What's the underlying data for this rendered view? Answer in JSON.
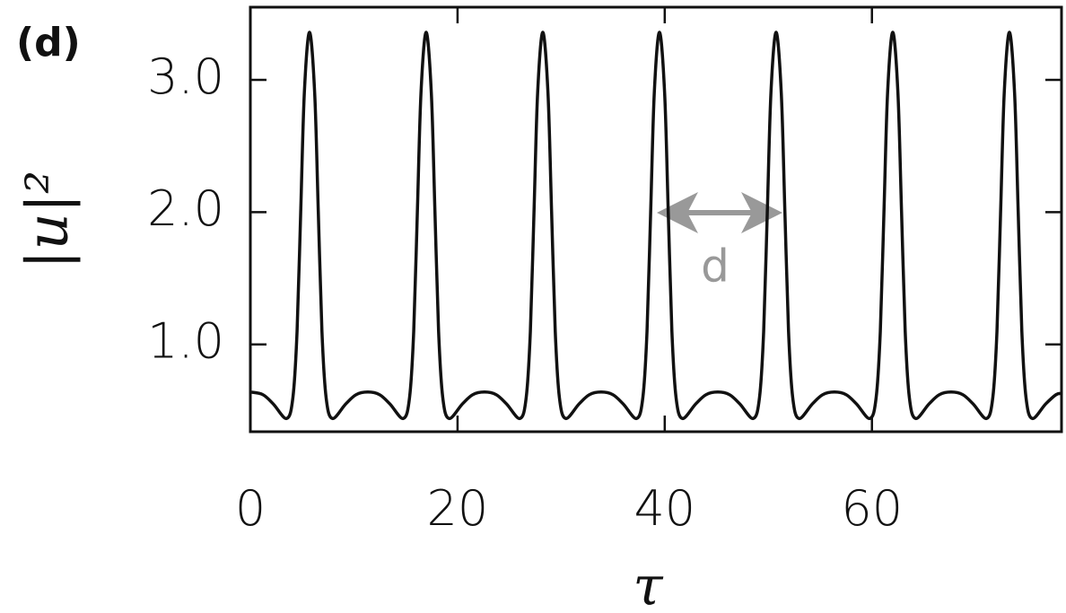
{
  "chart_data": {
    "type": "line",
    "panel_label": "(d)",
    "xlabel": "τ",
    "ylabel": "|u|²",
    "annotation": "d",
    "xlim": [
      0,
      78.3
    ],
    "ylim": [
      0.34,
      3.55
    ],
    "xticks": [
      0,
      20,
      40,
      60
    ],
    "yticks": [
      {
        "value": 1,
        "label": "1.0"
      },
      {
        "value": 2,
        "label": "2.0"
      },
      {
        "value": 3,
        "label": "3.0"
      }
    ],
    "series": [
      {
        "color": "#111111",
        "x": [
          0,
          1.21,
          2.21,
          3.51,
          4.11,
          4.51,
          4.86,
          5.21,
          5.71,
          6.21,
          6.56,
          6.91,
          7.31,
          7.91,
          9.21,
          10.21,
          11.34,
          12.47,
          13.47,
          14.77,
          15.37,
          15.77,
          16.12,
          16.47,
          16.97,
          17.47,
          17.82,
          18.17,
          18.57,
          19.17,
          20.47,
          21.47,
          22.6,
          23.73,
          24.73,
          26.03,
          26.63,
          27.03,
          27.38,
          27.73,
          28.23,
          28.73,
          29.08,
          29.43,
          29.83,
          30.43,
          31.73,
          32.73,
          33.86,
          34.99,
          35.99,
          37.29,
          37.89,
          38.29,
          38.64,
          38.99,
          39.49,
          39.99,
          40.34,
          40.69,
          41.09,
          41.69,
          42.99,
          43.99,
          45.12,
          46.25,
          47.25,
          48.55,
          49.15,
          49.55,
          49.9,
          50.25,
          50.75,
          51.25,
          51.6,
          51.95,
          52.35,
          52.95,
          54.25,
          55.25,
          56.38,
          57.51,
          58.51,
          59.81,
          60.41,
          60.81,
          61.16,
          61.51,
          62.01,
          62.51,
          62.86,
          63.21,
          63.61,
          64.21,
          65.51,
          66.51,
          67.64,
          68.77,
          69.77,
          71.07,
          71.67,
          72.07,
          72.42,
          72.77,
          73.27,
          73.77,
          74.12,
          74.47,
          74.87,
          75.47,
          76.77,
          77.77,
          78.3
        ],
        "values": [
          0.64,
          0.62,
          0.55,
          0.44,
          0.6,
          1.1,
          2.0,
          2.9,
          3.36,
          2.9,
          2.0,
          1.1,
          0.6,
          0.44,
          0.55,
          0.62,
          0.64,
          0.62,
          0.55,
          0.44,
          0.6,
          1.1,
          2.0,
          2.9,
          3.36,
          2.9,
          2.0,
          1.1,
          0.6,
          0.44,
          0.55,
          0.62,
          0.64,
          0.62,
          0.55,
          0.44,
          0.6,
          1.1,
          2.0,
          2.9,
          3.36,
          2.9,
          2.0,
          1.1,
          0.6,
          0.44,
          0.55,
          0.62,
          0.64,
          0.62,
          0.55,
          0.44,
          0.6,
          1.1,
          2.0,
          2.9,
          3.36,
          2.9,
          2.0,
          1.1,
          0.6,
          0.44,
          0.55,
          0.62,
          0.64,
          0.62,
          0.55,
          0.44,
          0.6,
          1.1,
          2.0,
          2.9,
          3.36,
          2.9,
          2.0,
          1.1,
          0.6,
          0.44,
          0.55,
          0.62,
          0.64,
          0.62,
          0.55,
          0.44,
          0.6,
          1.1,
          2.0,
          2.9,
          3.36,
          2.9,
          2.0,
          1.1,
          0.6,
          0.44,
          0.55,
          0.62,
          0.64,
          0.62,
          0.55,
          0.44,
          0.6,
          1.1,
          2.0,
          2.9,
          3.36,
          2.9,
          2.0,
          1.1,
          0.6,
          0.44,
          0.55,
          0.62,
          0.63
        ]
      }
    ]
  }
}
